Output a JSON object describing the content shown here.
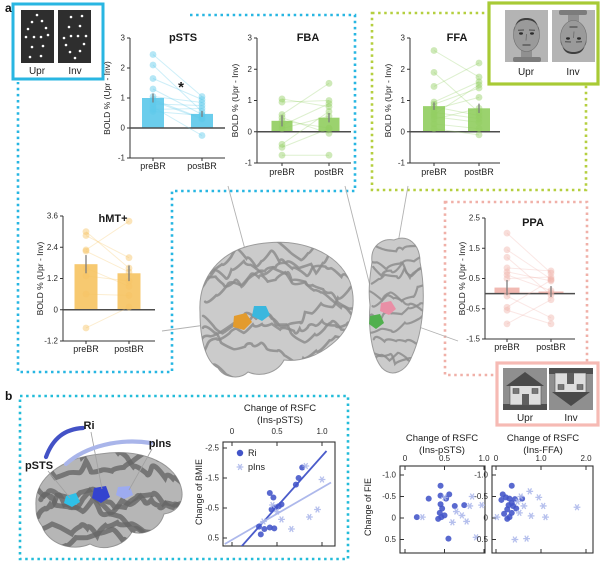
{
  "panels": {
    "a": "a",
    "b": "b"
  },
  "stimuli": {
    "dots": {
      "kind": "point-light-biological-motion",
      "labels": [
        "Upr",
        "Inv"
      ],
      "border_color": "#29b6e2"
    },
    "faces": {
      "kind": "face-photographs",
      "labels": [
        "Upr",
        "Inv"
      ],
      "border_color": "#a8ca35"
    },
    "houses": {
      "kind": "house-photographs",
      "labels": [
        "Upr",
        "Inv"
      ],
      "border_color": "#f6bab4"
    }
  },
  "outline_colors": {
    "biomotion_dashed": "#27b6e2",
    "face_dashed": "#b5cf3f",
    "house_dashed": "#f0b0a8",
    "panel_b_dashed": "#23bcd9"
  },
  "panel_b": {
    "labels": [
      "pSTS",
      "Ri",
      "pIns"
    ],
    "arc_colors": {
      "ri": "#4352c6",
      "pins": "#a9b5ea"
    }
  },
  "chart_data": [
    {
      "id": "psts",
      "type": "bar",
      "title": "pSTS",
      "ylabel": "BOLD % (Upr - Inv)",
      "categories": [
        "preBR",
        "postBR"
      ],
      "bar_means": [
        1.0,
        0.47
      ],
      "errors": [
        0.15,
        0.1
      ],
      "ylim": [
        -1,
        3
      ],
      "yticks": {
        "values": [
          3,
          2,
          1,
          0,
          -1
        ],
        "labels": [
          "3",
          "2",
          "1",
          "0",
          "-1"
        ]
      },
      "significance": "*",
      "color": "#5ec9ea",
      "paired_points": [
        [
          2.45,
          1.05
        ],
        [
          2.1,
          0.55
        ],
        [
          1.65,
          0.95
        ],
        [
          1.3,
          0.45
        ],
        [
          1.05,
          0.85
        ],
        [
          0.95,
          0.32
        ],
        [
          0.9,
          0.3
        ],
        [
          0.8,
          0.75
        ],
        [
          0.7,
          -0.25
        ],
        [
          0.62,
          0.65
        ],
        [
          0.55,
          0.42
        ]
      ]
    },
    {
      "id": "fba",
      "type": "bar",
      "title": "FBA",
      "ylabel": "BOLD % (Upr - Inv)",
      "categories": [
        "preBR",
        "postBR"
      ],
      "bar_means": [
        0.35,
        0.45
      ],
      "errors": [
        0.18,
        0.15
      ],
      "ylim": [
        -1,
        3
      ],
      "yticks": {
        "values": [
          3,
          2,
          1,
          0,
          -1
        ],
        "labels": [
          "3",
          "2",
          "1",
          "0",
          "-1"
        ]
      },
      "significance": null,
      "color": "#92ce62",
      "paired_points": [
        [
          1.05,
          0.8
        ],
        [
          0.95,
          1.0
        ],
        [
          0.55,
          1.55
        ],
        [
          0.45,
          -0.05
        ],
        [
          0.35,
          0.12
        ],
        [
          0.2,
          0.9
        ],
        [
          0.1,
          0.5
        ],
        [
          -0.4,
          0.65
        ],
        [
          -0.5,
          0.1
        ],
        [
          -0.75,
          -0.75
        ]
      ]
    },
    {
      "id": "ffa",
      "type": "bar",
      "title": "FFA",
      "ylabel": "BOLD % (Upr - Inv)",
      "categories": [
        "preBR",
        "postBR"
      ],
      "bar_means": [
        0.82,
        0.75
      ],
      "errors": [
        0.12,
        0.15
      ],
      "ylim": [
        -1,
        3
      ],
      "yticks": {
        "values": [
          3,
          2,
          1,
          0,
          -1
        ],
        "labels": [
          "3",
          "2",
          "1",
          "0",
          "-1"
        ]
      },
      "significance": null,
      "color": "#92ce62",
      "paired_points": [
        [
          2.6,
          1.75
        ],
        [
          1.9,
          0.62
        ],
        [
          1.45,
          2.2
        ],
        [
          0.95,
          1.6
        ],
        [
          0.88,
          1.4
        ],
        [
          0.8,
          0.52
        ],
        [
          0.72,
          1.1
        ],
        [
          0.62,
          0.42
        ],
        [
          0.55,
          1.5
        ],
        [
          0.48,
          0.3
        ],
        [
          0.4,
          0.75
        ],
        [
          0.25,
          0.1
        ],
        [
          0.1,
          -0.1
        ]
      ]
    },
    {
      "id": "hmt",
      "type": "bar",
      "title": "hMT+",
      "ylabel": "BOLD % (Upr - Inv)",
      "categories": [
        "preBR",
        "postBR"
      ],
      "bar_means": [
        1.75,
        1.4
      ],
      "errors": [
        0.35,
        0.3
      ],
      "ylim": [
        -1.2,
        3.6
      ],
      "yticks": {
        "values": [
          3.6,
          2.4,
          1.2,
          0,
          -1.2
        ],
        "labels": [
          "3.6",
          "2.4",
          "1.2",
          "0",
          "-1.2"
        ]
      },
      "significance": null,
      "color": "#f6c464",
      "paired_points": [
        [
          3.0,
          1.6
        ],
        [
          2.85,
          2.0
        ],
        [
          2.3,
          3.4
        ],
        [
          2.25,
          1.45
        ],
        [
          1.6,
          0.9
        ],
        [
          1.3,
          1.1
        ],
        [
          0.6,
          0.55
        ],
        [
          -0.7,
          0.1
        ]
      ]
    },
    {
      "id": "ppa",
      "type": "bar",
      "title": "PPA",
      "ylabel": "BOLD % (Upr - Inv)",
      "categories": [
        "preBR",
        "postBR"
      ],
      "bar_means": [
        0.2,
        0.07
      ],
      "errors": [
        0.25,
        0.18
      ],
      "ylim": [
        -1.5,
        2.5
      ],
      "yticks": {
        "values": [
          2.5,
          1.5,
          0.5,
          -0.5,
          -1.5
        ],
        "labels": [
          "2.5",
          "1.5",
          "0.5",
          "-0.5",
          "-1.5"
        ]
      },
      "significance": null,
      "color": "#f0b3ab",
      "paired_points": [
        [
          2.0,
          0.68
        ],
        [
          1.45,
          0.48
        ],
        [
          1.2,
          -0.05
        ],
        [
          0.85,
          0.75
        ],
        [
          0.72,
          0.42
        ],
        [
          0.62,
          0.1
        ],
        [
          0.5,
          0.55
        ],
        [
          0.05,
          0.03
        ],
        [
          -0.08,
          -0.8
        ],
        [
          -0.45,
          0.45
        ],
        [
          -0.55,
          -1.0
        ],
        [
          -1.0,
          -0.2
        ]
      ]
    },
    {
      "id": "bmie",
      "type": "scatter",
      "title": [
        "Change of RSFC",
        "(Ins-pSTS)"
      ],
      "xlabel_side": "top",
      "ylabel": "Change of BMIE",
      "y_inverted": true,
      "xticks": {
        "values": [
          0,
          0.5,
          1.0
        ],
        "labels": [
          "0",
          "0.5",
          "1.0"
        ]
      },
      "yticks": {
        "values": [
          -2.5,
          -1.5,
          -0.5,
          0.5
        ],
        "labels": [
          "-2.5",
          "-1.5",
          "-0.5",
          "0.5"
        ]
      },
      "legend": [
        {
          "label": "Ri",
          "marker": "circle"
        },
        {
          "label": "pIns",
          "marker": "asterisk"
        }
      ],
      "series": [
        {
          "name": "Ri",
          "marker": "circle",
          "color": "#4254c8",
          "points": [
            [
              0.78,
              -1.85
            ],
            [
              0.74,
              -1.5
            ],
            [
              0.71,
              -1.28
            ],
            [
              0.42,
              -1.0
            ],
            [
              0.46,
              -0.85
            ],
            [
              0.55,
              -0.62
            ],
            [
              0.48,
              -0.52
            ],
            [
              0.52,
              -0.56
            ],
            [
              0.44,
              -0.45
            ],
            [
              0.3,
              0.12
            ],
            [
              0.36,
              0.2
            ],
            [
              0.42,
              0.15
            ],
            [
              0.47,
              0.18
            ],
            [
              0.32,
              0.38
            ]
          ],
          "fit": [
            [
              0.1,
              0.8
            ],
            [
              1.05,
              -2.4
            ]
          ]
        },
        {
          "name": "pIns",
          "marker": "asterisk",
          "color": "#a9b5ea",
          "points": [
            [
              0.82,
              -1.9
            ],
            [
              1.0,
              -1.45
            ],
            [
              0.95,
              -0.45
            ],
            [
              0.86,
              -0.2
            ],
            [
              0.66,
              0.2
            ],
            [
              0.55,
              -0.12
            ],
            [
              0.5,
              -0.38
            ],
            [
              0.45,
              -0.6
            ],
            [
              0.35,
              -0.05
            ]
          ],
          "fit": [
            [
              -0.08,
              0.7
            ],
            [
              1.1,
              -1.35
            ]
          ]
        }
      ]
    },
    {
      "id": "fie_psts",
      "type": "scatter",
      "title": [
        "Change of RSFC",
        "(Ins-pSTS)"
      ],
      "xlabel_side": "top",
      "ylabel": "Change of FIE",
      "y_inverted": true,
      "xticks": {
        "values": [
          0,
          0.5,
          1.0
        ],
        "labels": [
          "0",
          "0.5",
          "1.0"
        ]
      },
      "yticks": {
        "values": [
          -1.0,
          -0.5,
          0,
          0.5
        ],
        "labels": [
          "-1.0",
          "-0.5",
          "0",
          "0.5"
        ]
      },
      "legend": null,
      "series": [
        {
          "name": "Ri",
          "marker": "circle",
          "color": "#4254c8",
          "points": [
            [
              0.45,
              -0.75
            ],
            [
              0.3,
              -0.45
            ],
            [
              0.45,
              -0.52
            ],
            [
              0.52,
              -0.45
            ],
            [
              0.56,
              -0.55
            ],
            [
              0.45,
              -0.32
            ],
            [
              0.47,
              -0.22
            ],
            [
              0.44,
              -0.12
            ],
            [
              0.46,
              -0.02
            ],
            [
              0.5,
              -0.06
            ],
            [
              0.42,
              0.02
            ],
            [
              0.75,
              -0.3
            ],
            [
              0.63,
              -0.28
            ],
            [
              0.15,
              -0.02
            ],
            [
              0.55,
              0.48
            ]
          ],
          "fit": null
        },
        {
          "name": "pIns",
          "marker": "asterisk",
          "color": "#a9b5ea",
          "points": [
            [
              0.22,
              -0.02
            ],
            [
              0.5,
              -0.48
            ],
            [
              0.65,
              -0.15
            ],
            [
              0.72,
              -0.06
            ],
            [
              0.85,
              -0.5
            ],
            [
              0.97,
              -0.3
            ],
            [
              0.82,
              -0.28
            ],
            [
              0.78,
              0.08
            ],
            [
              0.9,
              0.45
            ],
            [
              0.6,
              0.1
            ]
          ],
          "fit": null
        }
      ]
    },
    {
      "id": "fie_ffa",
      "type": "scatter",
      "title": [
        "Change of RSFC",
        "(Ins-FFA)"
      ],
      "xlabel_side": "top",
      "ylabel": null,
      "y_inverted": true,
      "xticks": {
        "values": [
          0,
          1.0,
          2.0
        ],
        "labels": [
          "0",
          "1.0",
          "2.0"
        ]
      },
      "yticks": {
        "values": [
          -1.0,
          -0.5,
          0,
          0.5
        ],
        "labels": [
          "-1.0",
          "-0.5",
          "0",
          "0.5"
        ]
      },
      "legend": null,
      "series": [
        {
          "name": "Ri",
          "marker": "circle",
          "color": "#4254c8",
          "points": [
            [
              0.35,
              -0.75
            ],
            [
              0.15,
              -0.55
            ],
            [
              0.22,
              -0.48
            ],
            [
              0.3,
              -0.45
            ],
            [
              0.42,
              -0.44
            ],
            [
              0.12,
              -0.42
            ],
            [
              0.35,
              -0.35
            ],
            [
              0.28,
              -0.3
            ],
            [
              0.38,
              -0.28
            ],
            [
              0.45,
              -0.22
            ],
            [
              0.25,
              -0.2
            ],
            [
              0.35,
              -0.12
            ],
            [
              0.18,
              -0.1
            ],
            [
              0.3,
              -0.02
            ],
            [
              0.25,
              0.02
            ],
            [
              0.58,
              -0.45
            ]
          ],
          "fit": null
        },
        {
          "name": "pIns",
          "marker": "asterisk",
          "color": "#a9b5ea",
          "points": [
            [
              0.75,
              -0.62
            ],
            [
              0.95,
              -0.48
            ],
            [
              0.55,
              -0.5
            ],
            [
              0.48,
              -0.38
            ],
            [
              0.62,
              -0.28
            ],
            [
              1.05,
              -0.28
            ],
            [
              1.8,
              -0.25
            ],
            [
              0.52,
              -0.12
            ],
            [
              0.78,
              -0.05
            ],
            [
              1.1,
              -0.02
            ],
            [
              0.02,
              -0.02
            ],
            [
              0.42,
              0.5
            ],
            [
              0.68,
              0.48
            ]
          ],
          "fit": null
        }
      ]
    }
  ]
}
